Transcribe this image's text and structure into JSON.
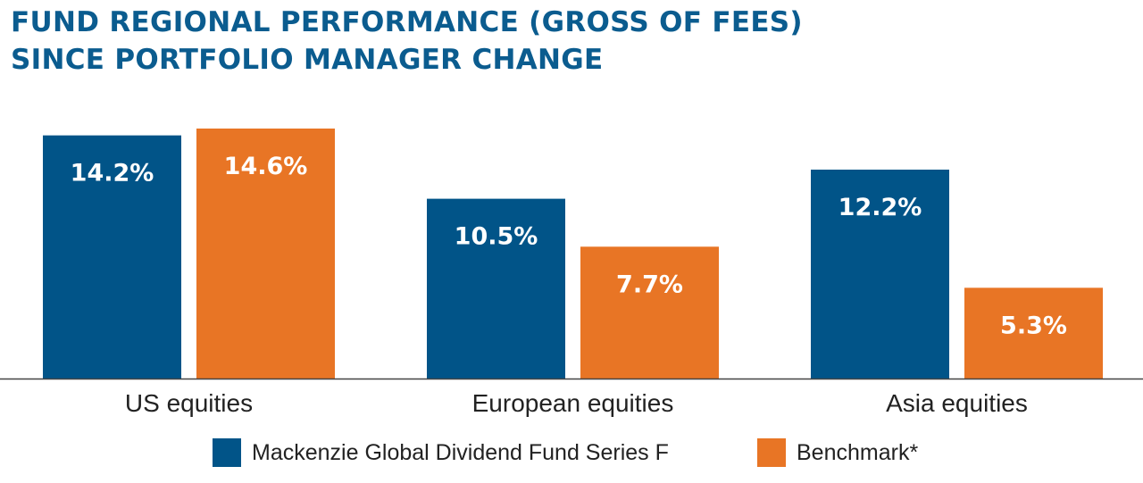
{
  "title_line1": "FUND REGIONAL PERFORMANCE (GROSS OF FEES)",
  "title_line2": "SINCE PORTFOLIO MANAGER CHANGE",
  "colors": {
    "fund": "#015488",
    "benchmark": "#e87525",
    "title": "#0b5c8f"
  },
  "legend": {
    "fund": "Mackenzie Global Dividend Fund Series F",
    "benchmark": "Benchmark*"
  },
  "chart_data": {
    "type": "bar",
    "categories": [
      "US equities",
      "European equities",
      "Asia equities"
    ],
    "series": [
      {
        "name": "Mackenzie Global Dividend Fund Series F",
        "values": [
          14.2,
          10.5,
          12.2
        ],
        "labels": [
          "14.2%",
          "10.5%",
          "12.2%"
        ]
      },
      {
        "name": "Benchmark*",
        "values": [
          14.6,
          7.7,
          5.3
        ],
        "labels": [
          "14.6%",
          "7.7%",
          "5.3%"
        ]
      }
    ],
    "ylim": [
      0,
      14.6
    ],
    "grid": false,
    "legend_position": "bottom"
  }
}
